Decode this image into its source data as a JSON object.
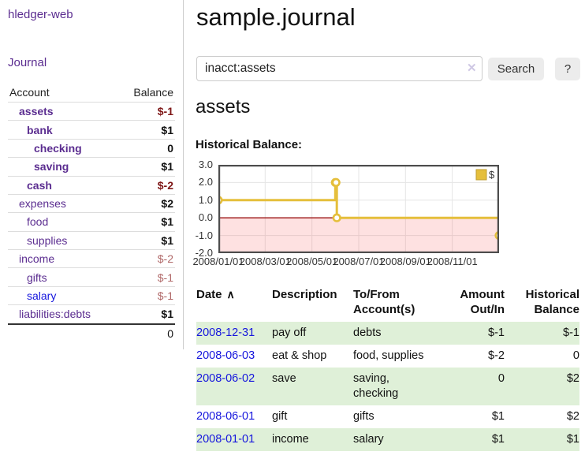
{
  "brand": "hledger-web",
  "nav": {
    "journal": "Journal"
  },
  "sidebar": {
    "columns": {
      "account": "Account",
      "balance": "Balance"
    },
    "accounts": [
      {
        "name": "assets",
        "depth": 1,
        "balance": "$-1",
        "emph": true,
        "neg": "strong",
        "link": "purple"
      },
      {
        "name": "bank",
        "depth": 2,
        "balance": "$1",
        "emph": true,
        "neg": null,
        "link": "purple"
      },
      {
        "name": "checking",
        "depth": 3,
        "balance": "0",
        "emph": true,
        "neg": null,
        "link": "purple"
      },
      {
        "name": "saving",
        "depth": 3,
        "balance": "$1",
        "emph": true,
        "neg": null,
        "link": "purple"
      },
      {
        "name": "cash",
        "depth": 2,
        "balance": "$-2",
        "emph": true,
        "neg": "strong",
        "link": "purple"
      },
      {
        "name": "expenses",
        "depth": 1,
        "balance": "$2",
        "emph": false,
        "neg": null,
        "link": "purple"
      },
      {
        "name": "food",
        "depth": 2,
        "balance": "$1",
        "emph": false,
        "neg": null,
        "link": "purple"
      },
      {
        "name": "supplies",
        "depth": 2,
        "balance": "$1",
        "emph": false,
        "neg": null,
        "link": "purple"
      },
      {
        "name": "income",
        "depth": 1,
        "balance": "$-2",
        "emph": false,
        "neg": "soft",
        "link": "purple"
      },
      {
        "name": "gifts",
        "depth": 2,
        "balance": "$-1",
        "emph": false,
        "neg": "soft",
        "link": "purple"
      },
      {
        "name": "salary",
        "depth": 2,
        "balance": "$-1",
        "emph": false,
        "neg": "soft",
        "link": "blue"
      },
      {
        "name": "liabilities:debts",
        "depth": 1,
        "balance": "$1",
        "emph": false,
        "neg": null,
        "link": "purple"
      }
    ],
    "total": "0"
  },
  "page": {
    "title": "sample.journal",
    "account_title": "assets",
    "chart_heading": "Historical Balance:"
  },
  "search": {
    "value": "inacct:assets",
    "clear_icon": "✕",
    "search_label": "Search",
    "help_label": "?"
  },
  "chart_data": {
    "type": "line",
    "step": true,
    "title": "Historical Balance",
    "x_start": "2008-01-01",
    "x_end": "2008-12-31",
    "xticks": [
      "2008/01/01",
      "2008/03/01",
      "2008/05/01",
      "2008/07/01",
      "2008/09/01",
      "2008/11/01"
    ],
    "yticks": [
      3.0,
      2.0,
      1.0,
      0.0,
      -1.0,
      -2.0
    ],
    "ylim": [
      -2,
      3
    ],
    "grid": true,
    "legend_position": "top-right",
    "legend": [
      {
        "label": "$",
        "color": "#e5bf3c"
      }
    ],
    "series": [
      {
        "name": "$",
        "color": "#e5bf3c",
        "points": [
          {
            "date": "2008-01-01",
            "value": 1
          },
          {
            "date": "2008-06-01",
            "value": 2
          },
          {
            "date": "2008-06-02",
            "value": 2
          },
          {
            "date": "2008-06-03",
            "value": 0
          },
          {
            "date": "2008-12-31",
            "value": -1
          }
        ]
      }
    ],
    "negative_region_shaded": true,
    "zero_line_color": "#991111",
    "plot_colors": {
      "grid": "#e5e5e5",
      "border": "#4d4d4d",
      "negative_fill": "rgba(248,90,90,0.18)",
      "marker_fill": "#ffffff"
    }
  },
  "register": {
    "columns": {
      "date": "Date",
      "sort_icon": "∧",
      "description": "Description",
      "accounts": "To/From Account(s)",
      "amount": "Amount Out/In",
      "balance": "Historical Balance"
    },
    "rows": [
      {
        "date": "2008-12-31",
        "description": "pay off",
        "accounts": "debts",
        "amount": "$-1",
        "balance": "$-1",
        "amount_neg": true,
        "balance_neg": true
      },
      {
        "date": "2008-06-03",
        "description": "eat & shop",
        "accounts": "food, supplies",
        "amount": "$-2",
        "balance": "0",
        "amount_neg": true,
        "balance_neg": false
      },
      {
        "date": "2008-06-02",
        "description": "save",
        "accounts": "saving, checking",
        "amount": "0",
        "balance": "$2",
        "amount_neg": false,
        "balance_neg": false
      },
      {
        "date": "2008-06-01",
        "description": "gift",
        "accounts": "gifts",
        "amount": "$1",
        "balance": "$2",
        "amount_neg": false,
        "balance_neg": false
      },
      {
        "date": "2008-01-01",
        "description": "income",
        "accounts": "salary",
        "amount": "$1",
        "balance": "$1",
        "amount_neg": false,
        "balance_neg": false
      }
    ]
  },
  "colors": {
    "link_purple": "#5b2d90",
    "link_blue": "#1515dd",
    "negative_strong": "#7e1616",
    "negative_soft": "#b06868",
    "negative_table": "#8c1a1a",
    "stripe_green": "#dff0d8",
    "series_gold": "#e5bf3c"
  }
}
